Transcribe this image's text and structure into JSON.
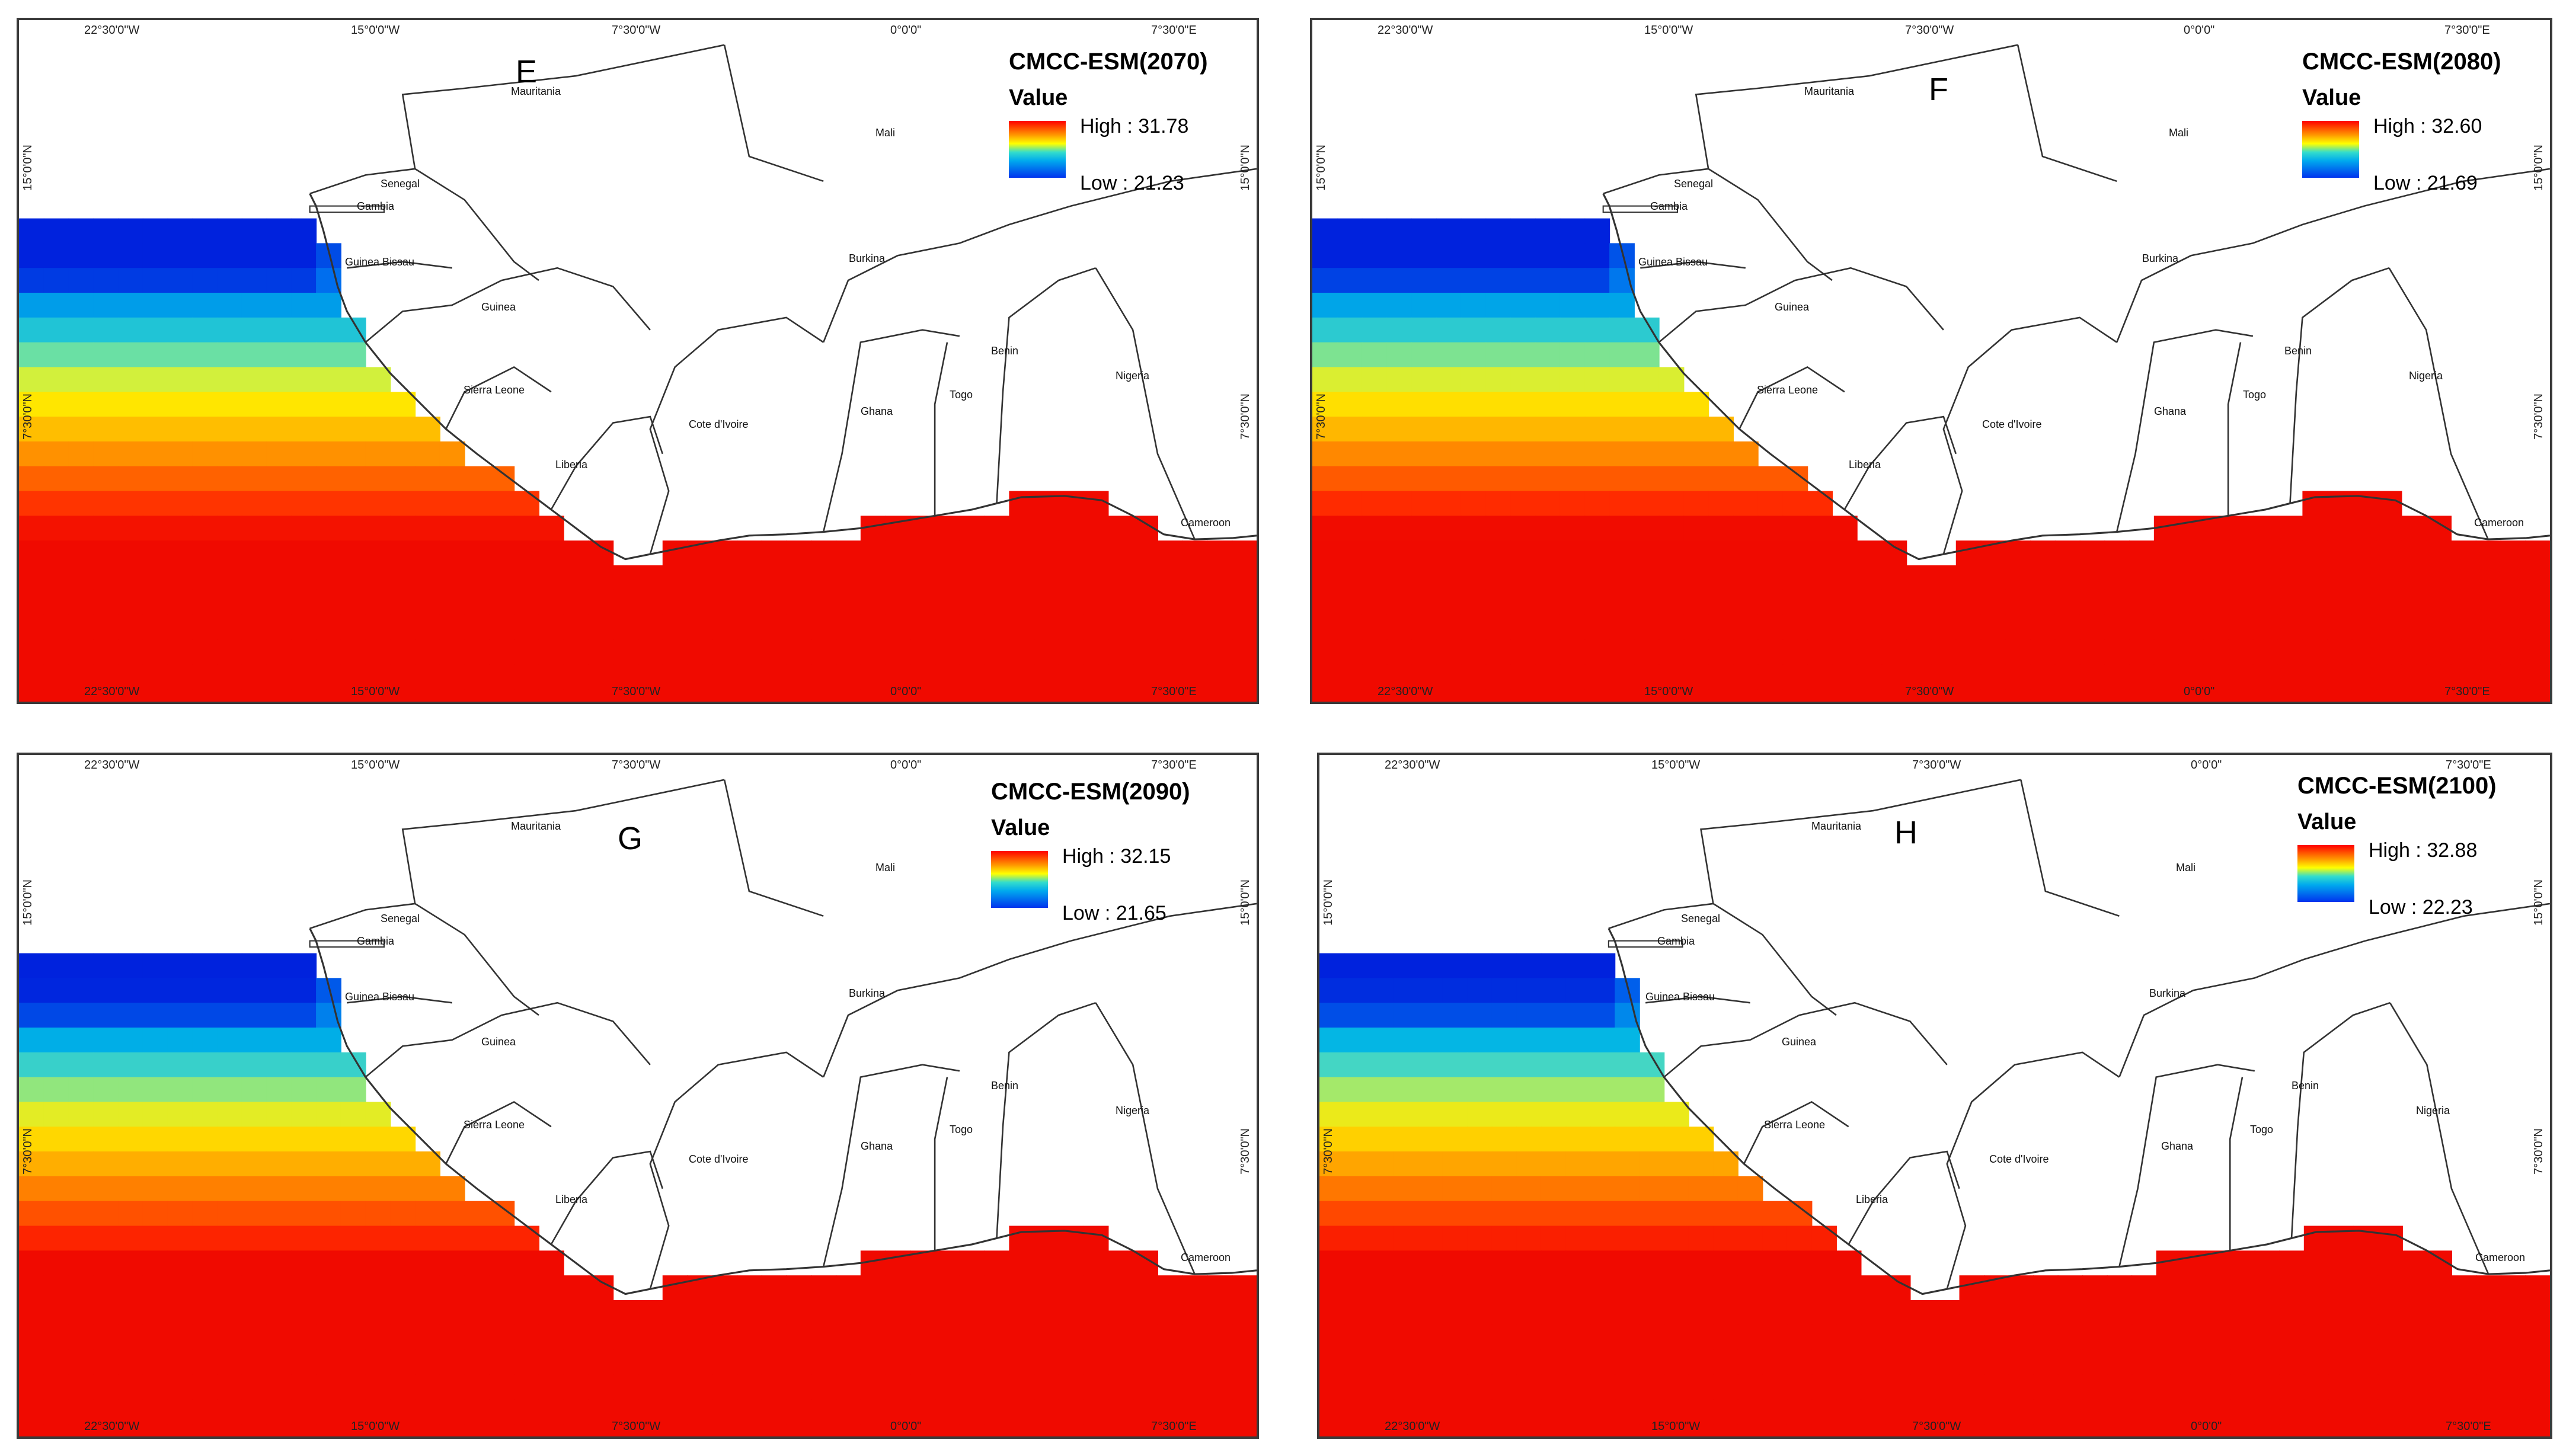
{
  "legend_heading": "Value",
  "axis": {
    "lon_22_30_w": "22°30'0\"W",
    "lon_15_w": "15°0'0\"W",
    "lon_7_30_w": "7°30'0\"W",
    "lon_0": "0°0'0\"",
    "lon_7_30_e": "7°30'0\"E",
    "lat_15_n": "15°0'0\"N",
    "lat_7_30_n": "7°30'0\"N"
  },
  "countries": {
    "mauritania": "Mauritania",
    "mali": "Mali",
    "senegal": "Senegal",
    "gambia": "Gambia",
    "guinea_bissau": "Guinea Bissau",
    "guinea": "Guinea",
    "sierra_leone": "Sierra Leone",
    "liberia": "Liberia",
    "cote_divoire": "Cote d'Ivoire",
    "ghana": "Ghana",
    "togo": "Togo",
    "benin": "Benin",
    "burkina": "Burkina",
    "nigeria": "Nigeria",
    "cameroon": "Cameroon"
  },
  "panels": [
    {
      "letter": "E",
      "title": "CMCC-ESM(2070)",
      "high": "High : 31.78",
      "low": "Low : 21.23"
    },
    {
      "letter": "F",
      "title": "CMCC-ESM(2080)",
      "high": "High : 32.60",
      "low": "Low : 21.69"
    },
    {
      "letter": "G",
      "title": "CMCC-ESM(2090)",
      "high": "High : 32.15",
      "low": "Low : 21.65"
    },
    {
      "letter": "H",
      "title": "CMCC-ESM(2100)",
      "high": "High : 32.88",
      "low": "Low : 22.23"
    }
  ],
  "colors": {
    "high": "#ff0000",
    "mid": "#ffff00",
    "low": "#0022dd",
    "land": "#ffffff",
    "border": "#333333"
  }
}
